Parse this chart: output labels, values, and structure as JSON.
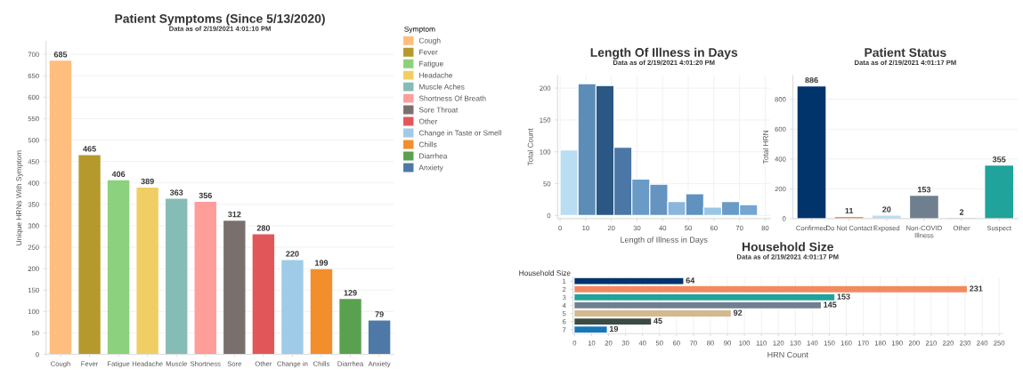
{
  "chart_data": [
    {
      "type": "bar",
      "title": "Patient Symptoms (Since 5/13/2020)",
      "subtitle": "Data as of 2/19/2021 4:01:10 PM",
      "ylabel": "Unique HRNs With Symptom",
      "legend_title": "Symptom",
      "legend": "right",
      "categories": [
        "Cough",
        "Fever",
        "Fatigue",
        "Headache",
        "Muscle",
        "Shortness",
        "Sore",
        "Other",
        "Change in",
        "Chills",
        "Diarrhea",
        "Anxiety"
      ],
      "series": [
        {
          "name": "Cough",
          "color": "#ffbe7d",
          "values": [
            685,
            null,
            null,
            null,
            null,
            null,
            null,
            null,
            null,
            null,
            null,
            null
          ]
        },
        {
          "name": "Fever",
          "color": "#b6992d",
          "values": [
            null,
            465,
            null,
            null,
            null,
            null,
            null,
            null,
            null,
            null,
            null,
            null
          ]
        },
        {
          "name": "Fatigue",
          "color": "#8cd17d",
          "values": [
            null,
            null,
            406,
            null,
            null,
            null,
            null,
            null,
            null,
            null,
            null,
            null
          ]
        },
        {
          "name": "Headache",
          "color": "#f1ce63",
          "values": [
            null,
            null,
            null,
            389,
            null,
            null,
            null,
            null,
            null,
            null,
            null,
            null
          ]
        },
        {
          "name": "Muscle Aches",
          "color": "#86bcb6",
          "values": [
            null,
            null,
            null,
            null,
            363,
            null,
            null,
            null,
            null,
            null,
            null,
            null
          ]
        },
        {
          "name": "Shortness Of Breath",
          "color": "#ff9d9a",
          "values": [
            null,
            null,
            null,
            null,
            null,
            356,
            null,
            null,
            null,
            null,
            null,
            null
          ]
        },
        {
          "name": "Sore Throat",
          "color": "#79706e",
          "values": [
            null,
            null,
            null,
            null,
            null,
            null,
            312,
            null,
            null,
            null,
            null,
            null
          ]
        },
        {
          "name": "Other",
          "color": "#e15759",
          "values": [
            null,
            null,
            null,
            null,
            null,
            null,
            null,
            280,
            null,
            null,
            null,
            null
          ]
        },
        {
          "name": "Change in Taste or Smell",
          "color": "#a0cbe8",
          "values": [
            null,
            null,
            null,
            null,
            null,
            null,
            null,
            null,
            220,
            null,
            null,
            null
          ]
        },
        {
          "name": "Chills",
          "color": "#f28e2b",
          "values": [
            null,
            null,
            null,
            null,
            null,
            null,
            null,
            null,
            null,
            199,
            null,
            null
          ]
        },
        {
          "name": "Diarrhea",
          "color": "#59a14f",
          "values": [
            null,
            null,
            null,
            null,
            null,
            null,
            null,
            null,
            null,
            null,
            129,
            null
          ]
        },
        {
          "name": "Anxiety",
          "color": "#4e79a7",
          "values": [
            null,
            null,
            null,
            null,
            null,
            null,
            null,
            null,
            null,
            null,
            null,
            79
          ]
        }
      ],
      "ylim": [
        0,
        730
      ],
      "yticks": [
        0,
        50,
        100,
        150,
        200,
        250,
        300,
        350,
        400,
        450,
        500,
        550,
        600,
        650,
        700
      ],
      "grid": "y",
      "data_labels": true
    },
    {
      "type": "histogram",
      "title": "Length Of Illness in Days",
      "subtitle": "Data as of 2/19/2021 4:01:20 PM",
      "xlabel": "Length of Illness in Days",
      "ylabel": "Total Count",
      "bins": [
        0,
        7,
        14,
        21,
        28,
        35,
        42,
        49,
        56,
        63,
        70,
        77
      ],
      "values": [
        103,
        207,
        204,
        107,
        57,
        49,
        22,
        34,
        13,
        22,
        17
      ],
      "colors": [
        "#b9ddf1",
        "#5b8db8",
        "#2a5783",
        "#4a77a5",
        "#6a9bc6",
        "#6594c0",
        "#8ab6dc",
        "#5f92c0",
        "#9ac6e6",
        "#6a9bc6",
        "#74a6d0"
      ],
      "xlim": [
        -1,
        82
      ],
      "xticks": [
        0,
        10,
        20,
        30,
        40,
        50,
        60,
        70,
        80
      ],
      "ylim": [
        -5,
        220
      ],
      "yticks": [
        0,
        50,
        100,
        150,
        200
      ],
      "grid": true
    },
    {
      "type": "bar",
      "title": "Patient Status",
      "subtitle": "Data as of 2/19/2021 4:01:17 PM",
      "ylabel": "Total HRN",
      "categories": [
        "Confirmed",
        "Do Not Contact",
        "Exposed",
        "Non-COVID\nIllness",
        "Other",
        "Suspect"
      ],
      "values": [
        886,
        11,
        20,
        153,
        2,
        355
      ],
      "colors": [
        "#00346b",
        "#f28e55",
        "#b9ddf1",
        "#6f7f8f",
        "#aaaaaa",
        "#1fa39a"
      ],
      "ylim": [
        0,
        960
      ],
      "yticks": [
        0,
        200,
        400,
        600,
        800
      ],
      "grid": "y",
      "data_labels": true
    },
    {
      "type": "bar",
      "orientation": "horizontal",
      "title": "Household Size",
      "subtitle": "Data as of 2/19/2021 4:01:17 PM",
      "xlabel": "HRN Count",
      "ylabel": "Household Size",
      "categories": [
        "1",
        "2",
        "3",
        "4",
        "5",
        "6",
        "7"
      ],
      "values": [
        64,
        231,
        153,
        145,
        92,
        45,
        19
      ],
      "colors": [
        "#00346b",
        "#f4895f",
        "#1fa39a",
        "#6f7f8f",
        "#d4b88e",
        "#3b4a45",
        "#1877b8"
      ],
      "xlim": [
        -1,
        252
      ],
      "xticks": [
        0,
        10,
        20,
        30,
        40,
        50,
        60,
        70,
        80,
        90,
        100,
        110,
        120,
        130,
        140,
        150,
        160,
        170,
        180,
        190,
        200,
        210,
        220,
        230,
        240,
        250
      ],
      "grid": "x",
      "data_labels": true
    }
  ]
}
